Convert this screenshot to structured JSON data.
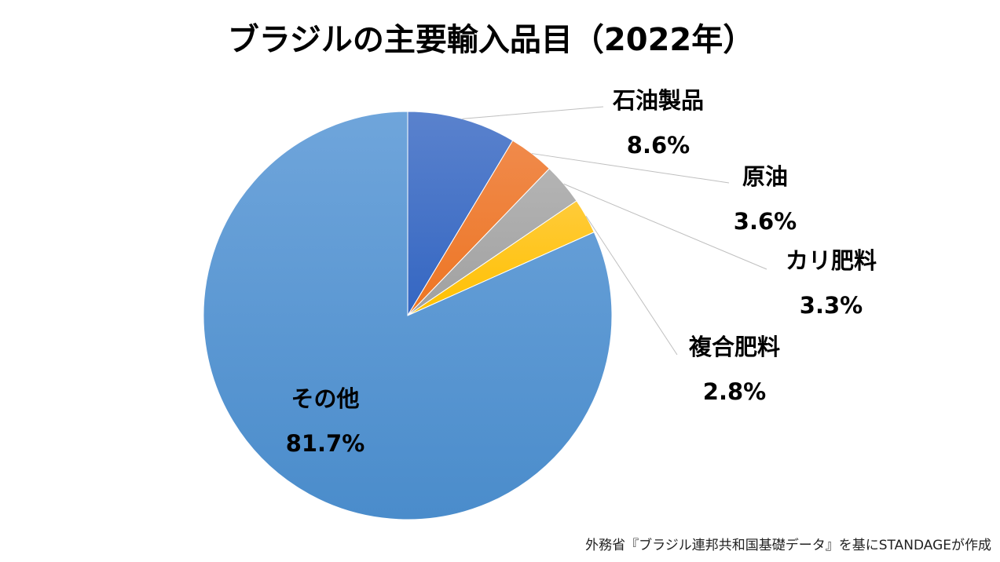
{
  "chart_data": {
    "type": "pie",
    "title": "ブラジルの主要輸入品目（2022年）",
    "unit": "%",
    "slices": [
      {
        "label": "石油製品",
        "value": 8.6,
        "value_label": "8.6%",
        "color": "#4472C4"
      },
      {
        "label": "原油",
        "value": 3.6,
        "value_label": "3.6%",
        "color": "#ED7D31"
      },
      {
        "label": "カリ肥料",
        "value": 3.3,
        "value_label": "3.3%",
        "color": "#A5A5A5"
      },
      {
        "label": "複合肥料",
        "value": 2.8,
        "value_label": "2.8%",
        "color": "#FFC000"
      },
      {
        "label": "その他",
        "value": 81.7,
        "value_label": "81.7%",
        "color": "#5B9BD5"
      }
    ],
    "start_angle_deg": 0,
    "direction": "clockwise",
    "leader_line_color": "#BFBFBF"
  },
  "source": "外務省『ブラジル連邦共和国基礎データ』を基にSTANDAGEが作成"
}
